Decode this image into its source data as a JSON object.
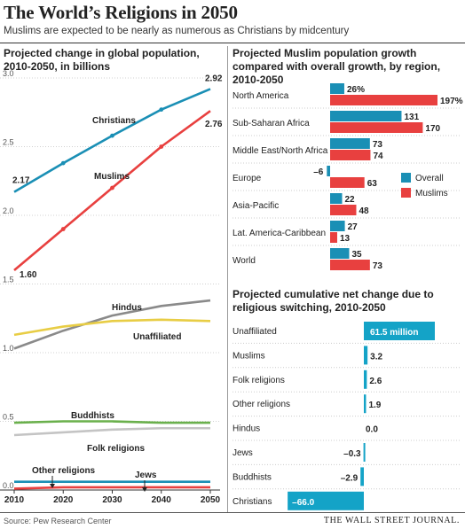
{
  "header": {
    "title": "The World’s Religions in 2050",
    "subtitle": "Muslims are expected to be nearly as numerous as Christians by midcentury"
  },
  "footer": {
    "source": "Source: Pew Research Center",
    "publisher": "THE WALL STREET JOURNAL."
  },
  "colors": {
    "blue": "#1a8fb5",
    "red": "#e8403f",
    "gray": "#8a8a8a",
    "yellow": "#e8cd45",
    "green": "#6ab04c",
    "lightgray": "#c4c4c4",
    "teal": "#14a3c7"
  },
  "chart_data": [
    {
      "type": "line",
      "title": "Projected change in global population, 2010-2050, in billions",
      "x": [
        2010,
        2020,
        2030,
        2040,
        2050
      ],
      "x_tick_labels": [
        "2010",
        "2020",
        "2030",
        "2040",
        "2050"
      ],
      "y_tick_labels": [
        "3.0",
        "2.5",
        "2.0",
        "1.5",
        "1.0",
        "0.5",
        "0.0"
      ],
      "ylim": [
        0,
        3.0
      ],
      "series": [
        {
          "name": "Christians",
          "values": [
            2.17,
            2.38,
            2.58,
            2.77,
            2.92
          ],
          "color": "#1a8fb5",
          "start_label": "2.17",
          "end_label": "2.92"
        },
        {
          "name": "Muslims",
          "values": [
            1.6,
            1.9,
            2.2,
            2.5,
            2.76
          ],
          "color": "#e8403f",
          "start_label": "1.60",
          "end_label": "2.76"
        },
        {
          "name": "Hindus",
          "values": [
            1.03,
            1.16,
            1.27,
            1.34,
            1.38
          ],
          "color": "#8a8a8a"
        },
        {
          "name": "Unaffiliated",
          "values": [
            1.13,
            1.19,
            1.23,
            1.24,
            1.23
          ],
          "color": "#e8cd45"
        },
        {
          "name": "Buddhists",
          "values": [
            0.49,
            0.5,
            0.5,
            0.49,
            0.49
          ],
          "color": "#6ab04c"
        },
        {
          "name": "Folk religions",
          "values": [
            0.4,
            0.42,
            0.44,
            0.45,
            0.45
          ],
          "color": "#c4c4c4"
        },
        {
          "name": "Other religions",
          "values": [
            0.06,
            0.06,
            0.06,
            0.06,
            0.06
          ],
          "color": "#1a8fb5"
        },
        {
          "name": "Jews",
          "values": [
            0.01,
            0.02,
            0.02,
            0.02,
            0.02
          ],
          "color": "#e8403f"
        }
      ]
    },
    {
      "type": "bar",
      "title": "Projected Muslim population growth compared with overall growth, by region, 2010-2050",
      "categories": [
        "North America",
        "Sub-Saharan Africa",
        "Middle East/North Africa",
        "Europe",
        "Asia-Pacific",
        "Lat. America-Caribbean",
        "World"
      ],
      "series": [
        {
          "name": "Overall",
          "values": [
            26,
            131,
            73,
            -6,
            22,
            27,
            35
          ],
          "labels": [
            "26%",
            "131",
            "73",
            "–6",
            "22",
            "27",
            "35"
          ],
          "color": "#1a8fb5"
        },
        {
          "name": "Muslims",
          "values": [
            197,
            170,
            74,
            63,
            48,
            13,
            73
          ],
          "labels": [
            "197%",
            "170",
            "74",
            "63",
            "48",
            "13",
            "73"
          ],
          "color": "#e8403f"
        }
      ]
    },
    {
      "type": "bar",
      "title": "Projected cumulative net change due to religious switching, 2010-2050",
      "categories": [
        "Unaffiliated",
        "Muslims",
        "Folk religions",
        "Other religions",
        "Hindus",
        "Jews",
        "Buddhists",
        "Christians"
      ],
      "values": [
        61.5,
        3.2,
        2.6,
        1.9,
        0.0,
        -0.3,
        -2.9,
        -66.0
      ],
      "labels": [
        "61.5 million",
        "3.2",
        "2.6",
        "1.9",
        "0.0",
        "–0.3",
        "–2.9",
        "–66.0"
      ],
      "color": "#14a3c7"
    }
  ]
}
